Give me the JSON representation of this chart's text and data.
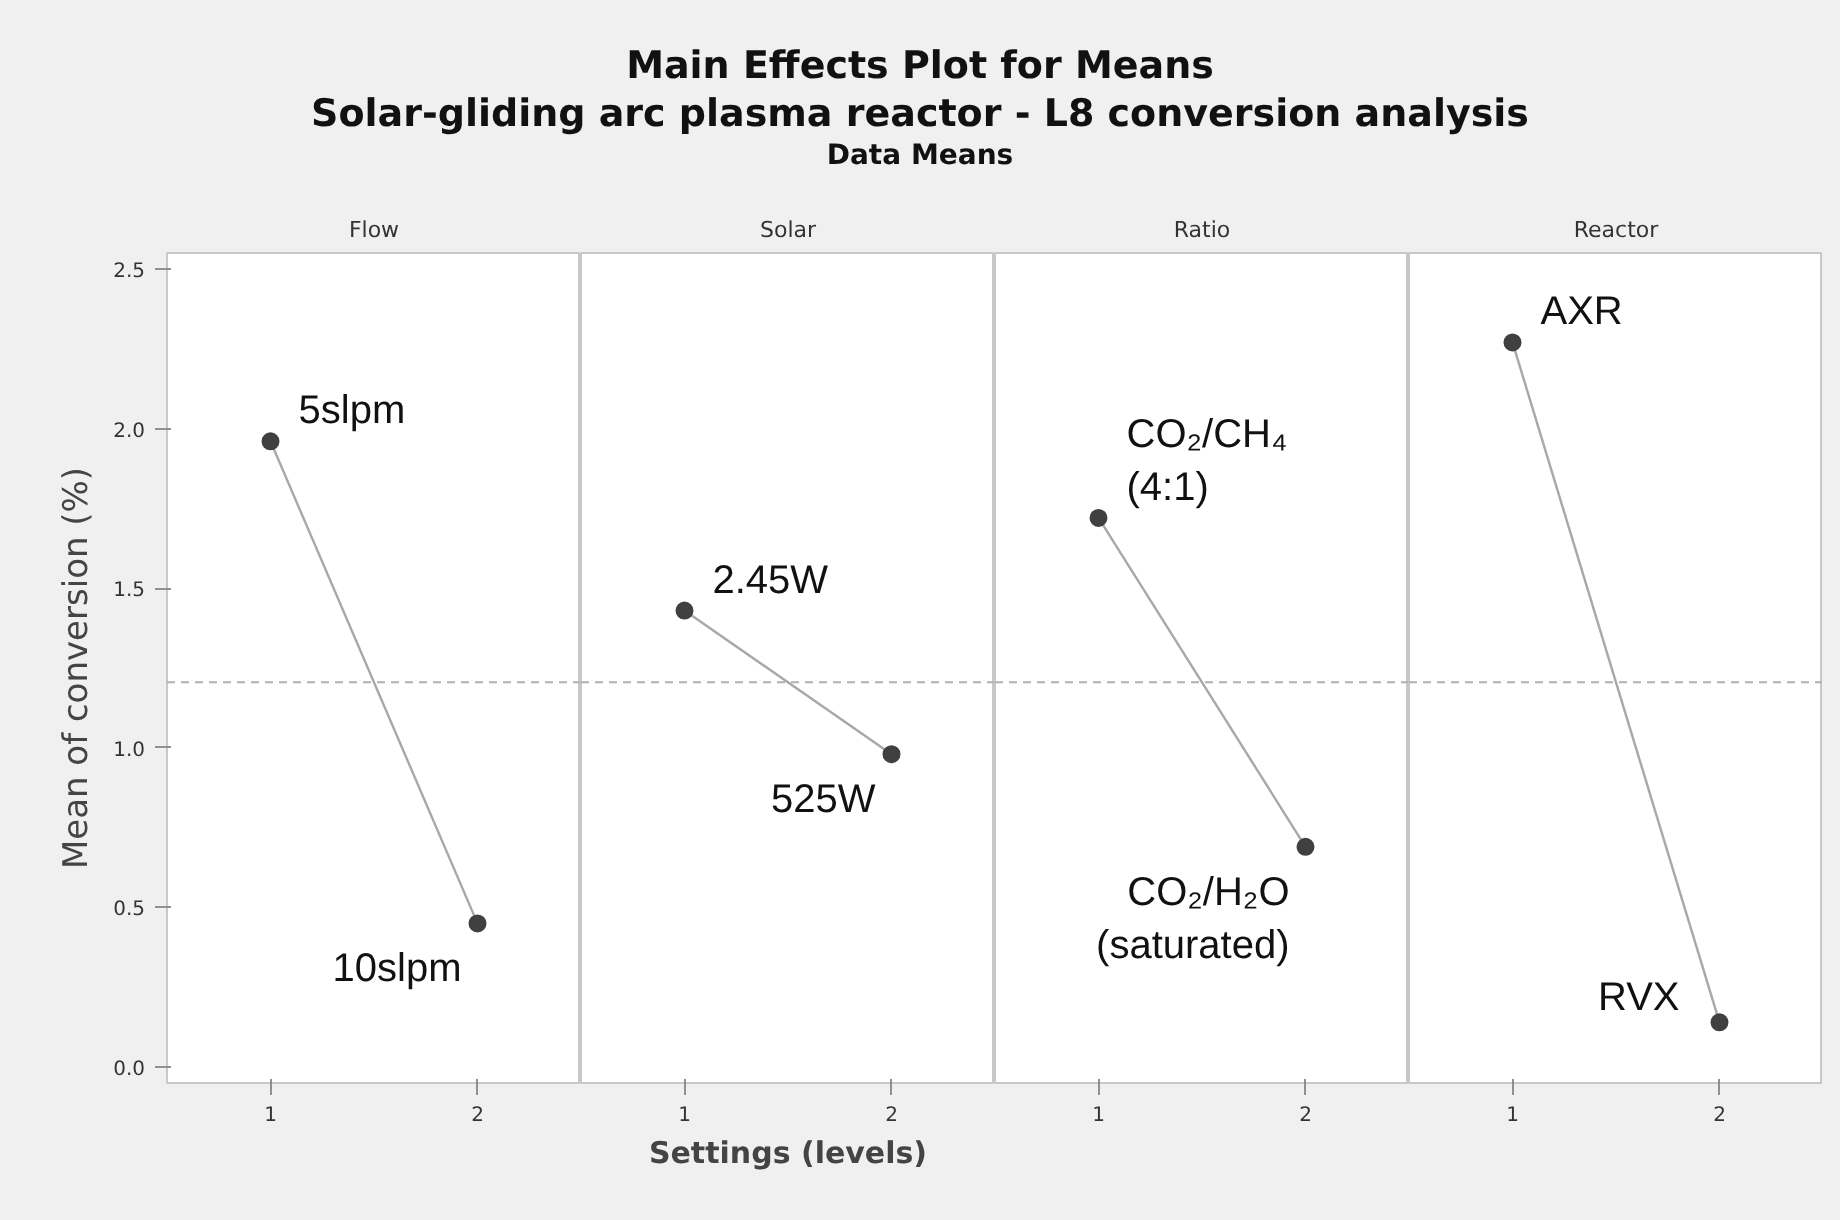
{
  "chart_data": [
    {
      "type": "line",
      "title": "Flow",
      "annotations": [
        "Main Effects Plot for Means",
        "Solar-gliding arc plasma reactor - L8 conversion analysis",
        "Data Means",
        {
          "text": "5slpm",
          "x": "1",
          "y": 1.96
        },
        {
          "text": "10slpm",
          "x": "2",
          "y": 0.45
        }
      ],
      "ylabel": "Mean of conversion (%)",
      "categories": [
        "1",
        "2"
      ],
      "values": [
        1.96,
        0.45
      ],
      "color": "#404040",
      "ylim": [
        -0.05,
        2.55
      ],
      "yticks": [
        {
          "value": 0,
          "label": "0.0"
        },
        0.5,
        {
          "value": 1,
          "label": "1.0"
        },
        1.5,
        {
          "value": 2,
          "label": "2.0"
        },
        2.5
      ],
      "ref_lines": [
        {
          "axis": "y",
          "value": 1.205,
          "color": "#b0b0b0",
          "line_style": "dashed"
        }
      ],
      "marker": "circle",
      "grid": false
    },
    {
      "type": "line",
      "title": "Solar",
      "annotations": [
        {
          "text": "2.45W",
          "x": "1",
          "y": 1.43
        },
        {
          "text": "525W",
          "x": "2",
          "y": 0.98
        }
      ],
      "xlabel": "Settings (levels)",
      "categories": [
        "1",
        "2"
      ],
      "values": [
        1.43,
        0.98
      ],
      "color": "#404040",
      "ylim": [
        -0.05,
        2.55
      ],
      "tick_labels": "x",
      "ref_lines": [
        {
          "axis": "y",
          "value": 1.205,
          "color": "#b0b0b0",
          "line_style": "dashed"
        }
      ],
      "marker": "circle",
      "grid": false
    },
    {
      "type": "line",
      "title": "Ratio",
      "annotations": [
        {
          "text": "CO₂/CH₄\n(4:1)",
          "x": "1",
          "y": 1.72
        },
        {
          "text": "CO₂/H₂O\n(saturated)",
          "x": "2",
          "y": 0.69
        }
      ],
      "categories": [
        "1",
        "2"
      ],
      "values": [
        1.72,
        0.69
      ],
      "color": "#404040",
      "ylim": [
        -0.05,
        2.55
      ],
      "tick_labels": "x",
      "ref_lines": [
        {
          "axis": "y",
          "value": 1.205,
          "color": "#b0b0b0",
          "line_style": "dashed"
        }
      ],
      "marker": "circle",
      "grid": false
    },
    {
      "type": "line",
      "title": "Reactor",
      "annotations": [
        {
          "text": "AXR",
          "x": "1",
          "y": 2.27
        },
        {
          "text": "RVX",
          "x": "2",
          "y": 0.14
        }
      ],
      "categories": [
        "1",
        "2"
      ],
      "values": [
        2.27,
        0.14
      ],
      "color": "#404040",
      "ylim": [
        -0.05,
        2.55
      ],
      "tick_labels": "x",
      "ref_lines": [
        {
          "axis": "y",
          "value": 1.205,
          "color": "#b0b0b0",
          "line_style": "dashed"
        }
      ],
      "marker": "circle",
      "grid": false
    }
  ]
}
